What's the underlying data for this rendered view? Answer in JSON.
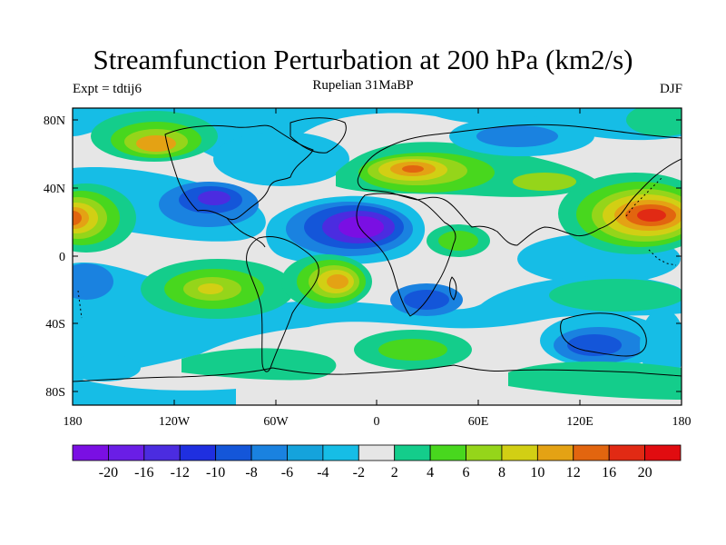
{
  "title": "Streamfunction Perturbation at 200 hPa (km2/s)",
  "subtitle_left": "Expt = tdtij6",
  "subtitle_center": "Rupelian  31MaBP",
  "subtitle_right": "DJF",
  "lat_labels": [
    "80N",
    "40N",
    "0",
    "40S",
    "80S"
  ],
  "lon_labels": [
    "180",
    "120W",
    "60W",
    "0",
    "60E",
    "120E",
    "180"
  ],
  "colorbar": {
    "labels": [
      "-20",
      "-16",
      "-12",
      "-10",
      "-8",
      "-6",
      "-4",
      "-2",
      "2",
      "4",
      "6",
      "8",
      "10",
      "12",
      "16",
      "20"
    ],
    "colors": [
      "#7a0fe3",
      "#6a1ee6",
      "#4b2ce0",
      "#1f2fe0",
      "#1456d9",
      "#1a82e0",
      "#15a3dc",
      "#16bde6",
      "#e6e6e6",
      "#14cd8b",
      "#48d71e",
      "#95d51a",
      "#d2cf14",
      "#e4a214",
      "#e2650f",
      "#e12a14",
      "#e10c10"
    ]
  },
  "map_colors": {
    "background": "#e6e6e6",
    "neg_weak": "#16bde6",
    "neg_mid": "#1a82e0",
    "neg_strong": "#1456d9",
    "neg_core": "#4b2ce0",
    "neg_peak": "#7a0fe3",
    "pos_weak": "#14cd8b",
    "pos_mid": "#48d71e",
    "pos_strong": "#95d51a",
    "pos_yellow": "#d2cf14",
    "pos_orange": "#e4a214",
    "pos_red": "#e2650f",
    "pos_peak": "#e12a14"
  }
}
